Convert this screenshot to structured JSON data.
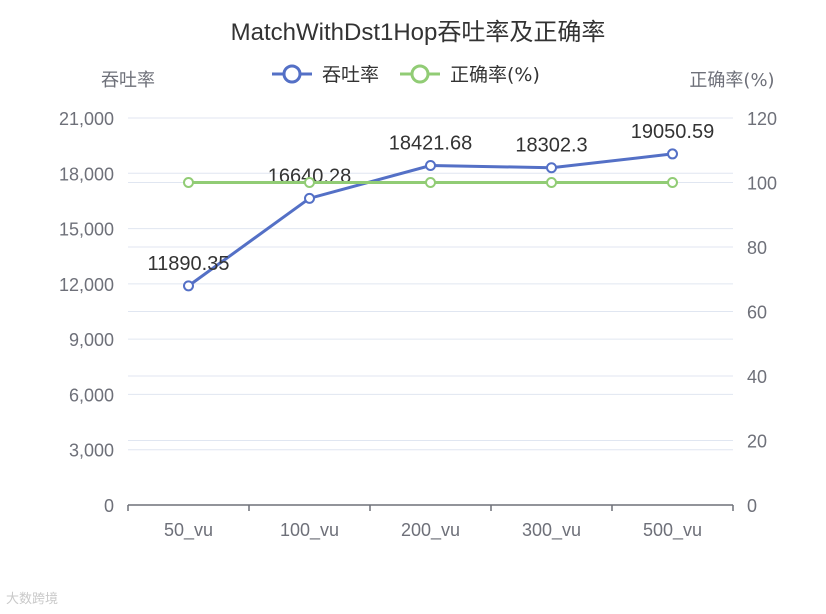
{
  "chart_data": {
    "type": "line",
    "title": "MatchWithDst1Hop吞吐率及正确率",
    "categories": [
      "50_vu",
      "100_vu",
      "200_vu",
      "300_vu",
      "500_vu"
    ],
    "y_left": {
      "label": "吞吐率",
      "range": [
        0,
        21000
      ],
      "ticks": [
        "0",
        "3,000",
        "6,000",
        "9,000",
        "12,000",
        "15,000",
        "18,000",
        "21,000"
      ]
    },
    "y_right": {
      "label": "正确率(%)",
      "range": [
        0,
        120
      ],
      "ticks": [
        "0",
        "20",
        "40",
        "60",
        "80",
        "100",
        "120"
      ]
    },
    "series": [
      {
        "name": "吞吐率",
        "axis": "left",
        "color": "#5470c6",
        "values": [
          11890.35,
          16640.28,
          18421.68,
          18302.3,
          19050.59
        ],
        "labels": [
          "11890.35",
          "16640.28",
          "18421.68",
          "18302.3",
          "19050.59"
        ]
      },
      {
        "name": "正确率(%)",
        "axis": "right",
        "color": "#91cc75",
        "values": [
          100,
          100,
          100,
          100,
          100
        ]
      }
    ],
    "legend": "top-center",
    "grid": true
  },
  "watermark": "大数跨境"
}
